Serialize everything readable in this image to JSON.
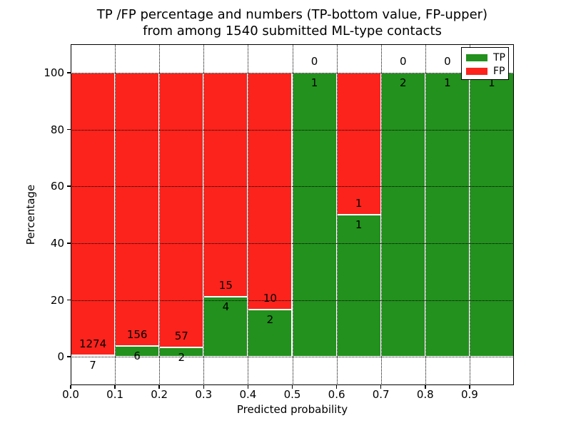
{
  "figure": {
    "title_line1": "TP /FP percentage and numbers (TP-bottom value, FP-upper)",
    "title_line2": "from among 1540 submitted ML-type contacts"
  },
  "chart_data": {
    "type": "bar",
    "subtype": "stacked-percentage-histogram",
    "title": "TP /FP percentage and numbers (TP-bottom value, FP-upper)\nfrom among 1540 submitted ML-type contacts",
    "total_contacts": 1540,
    "xlabel": "Predicted probability",
    "ylabel": "Percentage",
    "xlim": [
      0.0,
      1.0
    ],
    "ylim": [
      -10,
      110
    ],
    "grid": "dotted",
    "x_tick_labels": [
      "0.0",
      "0.1",
      "0.2",
      "0.3",
      "0.4",
      "0.5",
      "0.6",
      "0.7",
      "0.8",
      "0.9"
    ],
    "x_tick_values": [
      0.0,
      0.1,
      0.2,
      0.3,
      0.4,
      0.5,
      0.6,
      0.7,
      0.8,
      0.9
    ],
    "y_tick_labels": [
      "0",
      "20",
      "40",
      "60",
      "80",
      "100"
    ],
    "y_tick_values": [
      0,
      20,
      40,
      60,
      80,
      100
    ],
    "categories": [
      "0.0-0.1",
      "0.1-0.2",
      "0.2-0.3",
      "0.3-0.4",
      "0.4-0.5",
      "0.5-0.6",
      "0.6-0.7",
      "0.7-0.8",
      "0.8-0.9",
      "0.9-1.0"
    ],
    "series": [
      {
        "name": "TP",
        "values": [
          7,
          6,
          2,
          4,
          2,
          1,
          1,
          2,
          1,
          1
        ]
      },
      {
        "name": "FP",
        "values": [
          1274,
          156,
          57,
          15,
          10,
          0,
          1,
          0,
          0,
          0
        ]
      }
    ],
    "tp_percent": [
      0.55,
      3.7,
      3.39,
      21.05,
      16.67,
      100,
      50,
      100,
      100,
      100
    ],
    "bar_labels": [
      {
        "tp": "7",
        "fp": "1274"
      },
      {
        "tp": "6",
        "fp": "156"
      },
      {
        "tp": "2",
        "fp": "57"
      },
      {
        "tp": "4",
        "fp": "15"
      },
      {
        "tp": "2",
        "fp": "10"
      },
      {
        "tp": "1",
        "fp": "0"
      },
      {
        "tp": "1",
        "fp": "1"
      },
      {
        "tp": "2",
        "fp": "0"
      },
      {
        "tp": "1",
        "fp": "0"
      },
      {
        "tp": "1",
        "fp": null
      }
    ],
    "legend": {
      "position": "upper-right",
      "entries": [
        {
          "label": "TP",
          "color": "#22911d"
        },
        {
          "label": "FP",
          "color": "#fb231c"
        }
      ]
    },
    "colors": {
      "tp": "#22911d",
      "fp": "#fb231c",
      "grid": "#000000",
      "background": "#ffffff"
    }
  }
}
